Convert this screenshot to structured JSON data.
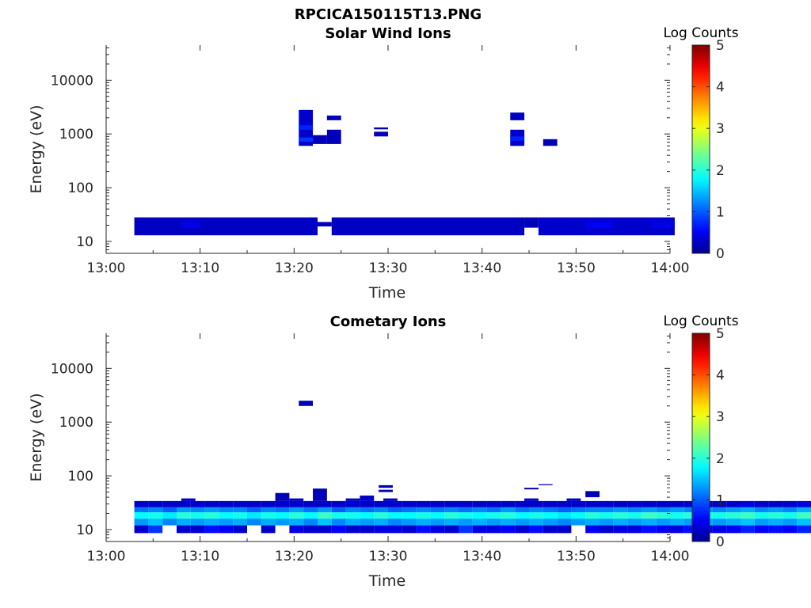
{
  "figure": {
    "title": "RPCICA150115T13.PNG"
  },
  "colormap": {
    "name": "jet",
    "stops": [
      "#00008f",
      "#0000ff",
      "#00ffff",
      "#ffff00",
      "#ff0000",
      "#800000"
    ]
  },
  "chart_data": [
    {
      "type": "heatmap",
      "title": "Solar Wind Ions",
      "xlabel": "Time",
      "ylabel": "Energy (eV)",
      "yscale": "log",
      "xlim": [
        "13:00",
        "14:00"
      ],
      "ylim": [
        6,
        45000
      ],
      "xticks": [
        "13:00",
        "13:10",
        "13:20",
        "13:30",
        "13:40",
        "13:50",
        "14:00"
      ],
      "yticks": [
        10,
        100,
        1000,
        10000
      ],
      "ytick_labels": [
        "10",
        "100",
        "1000",
        "10000"
      ],
      "colorbar": {
        "label": "Log Counts",
        "range": [
          0,
          5
        ],
        "ticks": [
          "0",
          "1",
          "2",
          "3",
          "4",
          "5"
        ]
      },
      "cells": [
        {
          "t0": "13:03",
          "t1": "13:22.5",
          "e0": 13,
          "e1": 28,
          "v": 0.25
        },
        {
          "t0": "13:22.5",
          "t1": "13:24",
          "e0": 19,
          "e1": 23,
          "v": 0.2
        },
        {
          "t0": "13:24",
          "t1": "13:44.5",
          "e0": 13,
          "e1": 28,
          "v": 0.25
        },
        {
          "t0": "13:44.5",
          "t1": "13:46",
          "e0": 18,
          "e1": 28,
          "v": 0.2
        },
        {
          "t0": "13:46",
          "t1": "14:00.5",
          "e0": 13,
          "e1": 28,
          "v": 0.3
        },
        {
          "t0": "13:08",
          "t1": "13:10",
          "e0": 18,
          "e1": 23,
          "v": 0.45
        },
        {
          "t0": "13:51",
          "t1": "13:54",
          "e0": 18,
          "e1": 23,
          "v": 0.5
        },
        {
          "t0": "13:58",
          "t1": "14:00.5",
          "e0": 18,
          "e1": 23,
          "v": 0.45
        },
        {
          "t0": "13:20.5",
          "t1": "13:22",
          "e0": 600,
          "e1": 2800,
          "v": 0.3
        },
        {
          "t0": "13:20.5",
          "t1": "13:22",
          "e0": 720,
          "e1": 860,
          "v": 0.8
        },
        {
          "t0": "13:20.5",
          "t1": "13:22",
          "e0": 1200,
          "e1": 1450,
          "v": 0.7
        },
        {
          "t0": "13:22",
          "t1": "13:23.5",
          "e0": 650,
          "e1": 950,
          "v": 0.2
        },
        {
          "t0": "13:23.5",
          "t1": "13:25",
          "e0": 650,
          "e1": 1200,
          "v": 0.2
        },
        {
          "t0": "13:23.5",
          "t1": "13:25",
          "e0": 1800,
          "e1": 2200,
          "v": 0.2
        },
        {
          "t0": "13:28.5",
          "t1": "13:30",
          "e0": 900,
          "e1": 1100,
          "v": 0.2
        },
        {
          "t0": "13:28.5",
          "t1": "13:30",
          "e0": 1220,
          "e1": 1320,
          "v": 0.2
        },
        {
          "t0": "13:43",
          "t1": "13:44.5",
          "e0": 600,
          "e1": 1200,
          "v": 0.3
        },
        {
          "t0": "13:43",
          "t1": "13:44.5",
          "e0": 750,
          "e1": 900,
          "v": 0.7
        },
        {
          "t0": "13:43",
          "t1": "13:44.5",
          "e0": 1800,
          "e1": 2500,
          "v": 0.25
        },
        {
          "t0": "13:46.5",
          "t1": "13:48",
          "e0": 600,
          "e1": 800,
          "v": 0.2
        }
      ]
    },
    {
      "type": "heatmap",
      "title": "Cometary Ions",
      "xlabel": "Time",
      "ylabel": "Energy (eV)",
      "yscale": "log",
      "xlim": [
        "13:00",
        "14:00"
      ],
      "ylim": [
        6,
        45000
      ],
      "xticks": [
        "13:00",
        "13:10",
        "13:20",
        "13:30",
        "13:40",
        "13:50",
        "14:00"
      ],
      "yticks": [
        10,
        100,
        1000,
        10000
      ],
      "ytick_labels": [
        "10",
        "100",
        "1000",
        "10000"
      ],
      "colorbar": {
        "label": "Log Counts",
        "range": [
          0,
          5
        ],
        "ticks": [
          "0",
          "1",
          "2",
          "3",
          "4",
          "5"
        ]
      },
      "band_edges_ev": [
        8.6,
        12,
        16,
        21,
        26,
        34
      ],
      "time_start": "13:03",
      "time_step_min": 1.5,
      "columns": [
        [
          0.3,
          1.3,
          1.8,
          1.1,
          0.3
        ],
        [
          0.8,
          1.5,
          1.9,
          1.2,
          0.3
        ],
        [
          null,
          1.2,
          1.7,
          1.0,
          0.3
        ],
        [
          0.3,
          1.4,
          2.0,
          1.3,
          0.3
        ],
        [
          0.3,
          1.3,
          1.9,
          1.2,
          0.3
        ],
        [
          0.6,
          1.4,
          2.0,
          1.3,
          0.3
        ],
        [
          0.5,
          1.3,
          1.8,
          1.2,
          0.3
        ],
        [
          0.3,
          1.4,
          1.9,
          1.2,
          0.3
        ],
        [
          null,
          1.2,
          1.7,
          1.0,
          0.3
        ],
        [
          0.3,
          1.4,
          1.9,
          1.2,
          0.3
        ],
        [
          null,
          1.3,
          1.8,
          1.1,
          0.3
        ],
        [
          0.4,
          1.4,
          2.0,
          1.3,
          0.3
        ],
        [
          0.3,
          1.2,
          1.8,
          1.1,
          0.3
        ],
        [
          0.3,
          1.5,
          2.1,
          1.3,
          0.3
        ],
        [
          0.5,
          1.2,
          1.9,
          1.0,
          0.3
        ],
        [
          0.3,
          1.4,
          1.9,
          1.2,
          0.3
        ],
        [
          0.3,
          1.3,
          1.8,
          1.1,
          0.3
        ],
        [
          0.4,
          1.4,
          2.0,
          1.2,
          0.3
        ],
        [
          0.4,
          1.2,
          1.8,
          1.0,
          0.3
        ],
        [
          0.3,
          1.3,
          1.8,
          1.1,
          0.3
        ],
        [
          0.6,
          1.4,
          1.9,
          1.2,
          0.3
        ],
        [
          0.4,
          1.3,
          1.8,
          1.1,
          0.3
        ],
        [
          0.3,
          1.4,
          2.0,
          1.2,
          0.3
        ],
        [
          0.8,
          1.3,
          1.9,
          1.1,
          0.3
        ],
        [
          0.4,
          1.4,
          1.8,
          1.2,
          0.3
        ],
        [
          0.4,
          1.3,
          1.9,
          1.1,
          0.3
        ],
        [
          0.5,
          1.4,
          2.0,
          1.3,
          0.3
        ],
        [
          0.3,
          1.3,
          1.8,
          1.1,
          0.3
        ],
        [
          0.6,
          1.4,
          1.9,
          1.2,
          0.3
        ],
        [
          0.3,
          1.3,
          1.8,
          1.1,
          0.3
        ],
        [
          0.3,
          1.2,
          1.7,
          1.0,
          0.3
        ],
        [
          null,
          1.3,
          1.8,
          1.1,
          0.3
        ],
        [
          0.5,
          1.4,
          2.0,
          1.2,
          0.3
        ],
        [
          0.3,
          1.3,
          1.9,
          1.2,
          0.3
        ],
        [
          0.4,
          1.4,
          2.0,
          1.3,
          0.3
        ],
        [
          0.4,
          1.3,
          1.9,
          1.2,
          0.3
        ],
        [
          0.6,
          1.4,
          2.1,
          1.3,
          0.3
        ],
        [
          0.5,
          1.3,
          2.0,
          1.2,
          0.3
        ],
        [
          0.4,
          1.4,
          1.9,
          1.3,
          0.3
        ],
        [
          0.6,
          1.3,
          2.0,
          1.2,
          0.3
        ],
        [
          0.5,
          1.4,
          1.9,
          1.3,
          0.3
        ],
        [
          0.4,
          1.3,
          1.9,
          1.2,
          0.3
        ],
        [
          0.5,
          1.4,
          2.0,
          1.3,
          0.3
        ],
        [
          0.7,
          1.5,
          2.1,
          1.4,
          0.4
        ],
        [
          0.5,
          1.3,
          1.9,
          1.2,
          0.3
        ],
        [
          0.6,
          1.4,
          2.0,
          1.3,
          0.3
        ],
        [
          0.5,
          1.3,
          1.9,
          1.2,
          0.3
        ],
        [
          0.7,
          1.5,
          2.1,
          1.4,
          0.4
        ]
      ],
      "cells": [
        {
          "t0": "13:08",
          "t1": "13:09.5",
          "e0": 34,
          "e1": 38,
          "v": 0.3
        },
        {
          "t0": "13:18",
          "t1": "13:19.5",
          "e0": 34,
          "e1": 48,
          "v": 0.2
        },
        {
          "t0": "13:19.5",
          "t1": "13:21",
          "e0": 34,
          "e1": 38,
          "v": 0.3
        },
        {
          "t0": "13:22",
          "t1": "13:23.5",
          "e0": 34,
          "e1": 58,
          "v": 0.2
        },
        {
          "t0": "13:25.5",
          "t1": "13:27",
          "e0": 34,
          "e1": 38,
          "v": 0.3
        },
        {
          "t0": "13:27",
          "t1": "13:28.5",
          "e0": 34,
          "e1": 43,
          "v": 0.3
        },
        {
          "t0": "13:29.5",
          "t1": "13:31",
          "e0": 34,
          "e1": 38,
          "v": 0.3
        },
        {
          "t0": "13:29",
          "t1": "13:30.5",
          "e0": 50,
          "e1": 55,
          "v": 0.2
        },
        {
          "t0": "13:29",
          "t1": "13:30.5",
          "e0": 60,
          "e1": 67,
          "v": 0.2
        },
        {
          "t0": "13:44.5",
          "t1": "13:46",
          "e0": 34,
          "e1": 38,
          "v": 0.3
        },
        {
          "t0": "13:44.5",
          "t1": "13:46",
          "e0": 56,
          "e1": 60,
          "v": 0.2
        },
        {
          "t0": "13:46",
          "t1": "13:47.5",
          "e0": 67,
          "e1": 70,
          "v": 0.3
        },
        {
          "t0": "13:49",
          "t1": "13:50.5",
          "e0": 34,
          "e1": 38,
          "v": 0.3
        },
        {
          "t0": "13:51",
          "t1": "13:52.5",
          "e0": 40,
          "e1": 52,
          "v": 0.2
        },
        {
          "t0": "13:20.5",
          "t1": "13:22",
          "e0": 2000,
          "e1": 2500,
          "v": 0.2
        }
      ]
    }
  ]
}
